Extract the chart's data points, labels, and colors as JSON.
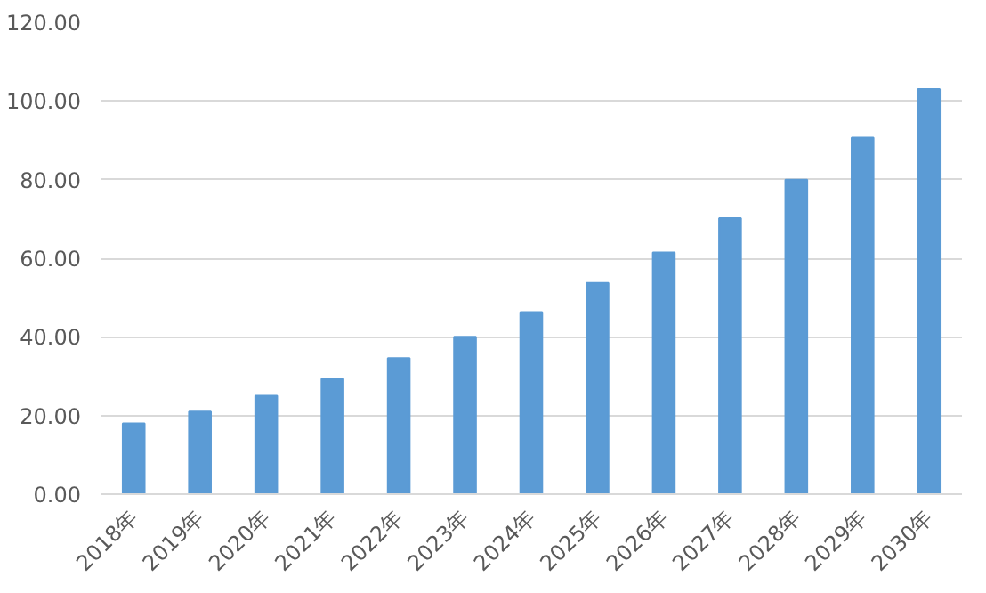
{
  "chart_data": {
    "type": "bar",
    "categories": [
      "2018年",
      "2019年",
      "2020年",
      "2021年",
      "2022年",
      "2023年",
      "2024年",
      "2025年",
      "2026年",
      "2027年",
      "2028年",
      "2029年",
      "2030年"
    ],
    "values": [
      18,
      21,
      25,
      29.3,
      34.6,
      40,
      46.3,
      53.7,
      61.5,
      70.2,
      80,
      90.7,
      103
    ],
    "color": "#5b9bd5",
    "ylim": [
      0,
      120
    ],
    "yticks": [
      {
        "value": 0,
        "label": "0.00"
      },
      {
        "value": 20,
        "label": "20.00"
      },
      {
        "value": 40,
        "label": "40.00"
      },
      {
        "value": 60,
        "label": "60.00"
      },
      {
        "value": 80,
        "label": "80.00"
      },
      {
        "value": 100,
        "label": "100.00"
      },
      {
        "value": 120,
        "label": "120.00"
      }
    ],
    "grid": "y"
  }
}
